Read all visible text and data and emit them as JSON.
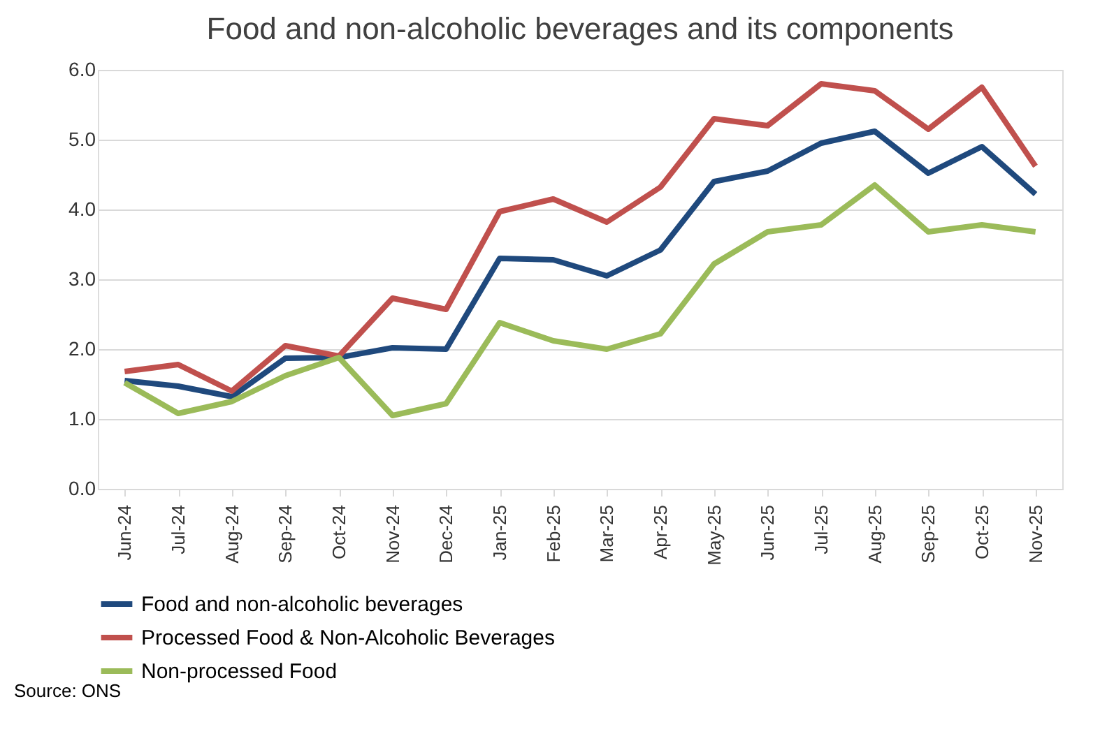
{
  "chart_data": {
    "type": "line",
    "title": "Food and non-alcoholic beverages and its components",
    "categories": [
      "Jun-24",
      "Jul-24",
      "Aug-24",
      "Sep-24",
      "Oct-24",
      "Nov-24",
      "Dec-24",
      "Jan-25",
      "Feb-25",
      "Mar-25",
      "Apr-25",
      "May-25",
      "Jun-25",
      "Jul-25",
      "Aug-25",
      "Sep-25",
      "Oct-25",
      "Nov-25"
    ],
    "series": [
      {
        "name": "Food and non-alcoholic beverages",
        "color": "#1f497d",
        "values": [
          1.55,
          1.47,
          1.32,
          1.87,
          1.88,
          2.02,
          2.0,
          3.3,
          3.28,
          3.05,
          3.42,
          4.4,
          4.55,
          4.95,
          5.12,
          4.52,
          4.9,
          4.22
        ]
      },
      {
        "name": "Processed Food & Non-Alcoholic Beverages",
        "color": "#c0504d",
        "values": [
          1.68,
          1.78,
          1.4,
          2.05,
          1.9,
          2.73,
          2.57,
          3.97,
          4.15,
          3.82,
          4.32,
          5.3,
          5.2,
          5.8,
          5.7,
          5.15,
          5.75,
          4.62
        ]
      },
      {
        "name": "Non-processed Food",
        "color": "#9bbb59",
        "values": [
          1.52,
          1.08,
          1.25,
          1.62,
          1.88,
          1.05,
          1.22,
          2.38,
          2.12,
          2.0,
          2.22,
          3.22,
          3.68,
          3.78,
          4.35,
          3.68,
          3.78,
          3.68
        ]
      }
    ],
    "ylim": [
      0,
      6
    ],
    "yticks": [
      {
        "value": 0,
        "label": "0.0"
      },
      {
        "value": 1,
        "label": "1.0"
      },
      {
        "value": 2,
        "label": "2.0"
      },
      {
        "value": 3,
        "label": "3.0"
      },
      {
        "value": 4,
        "label": "4.0"
      },
      {
        "value": 5,
        "label": "5.0"
      },
      {
        "value": 6,
        "label": "6.0"
      }
    ],
    "grid": "y",
    "legend": "bottom",
    "marker": "none",
    "line_style": "solid",
    "annotations": [
      "Source: ONS"
    ]
  }
}
